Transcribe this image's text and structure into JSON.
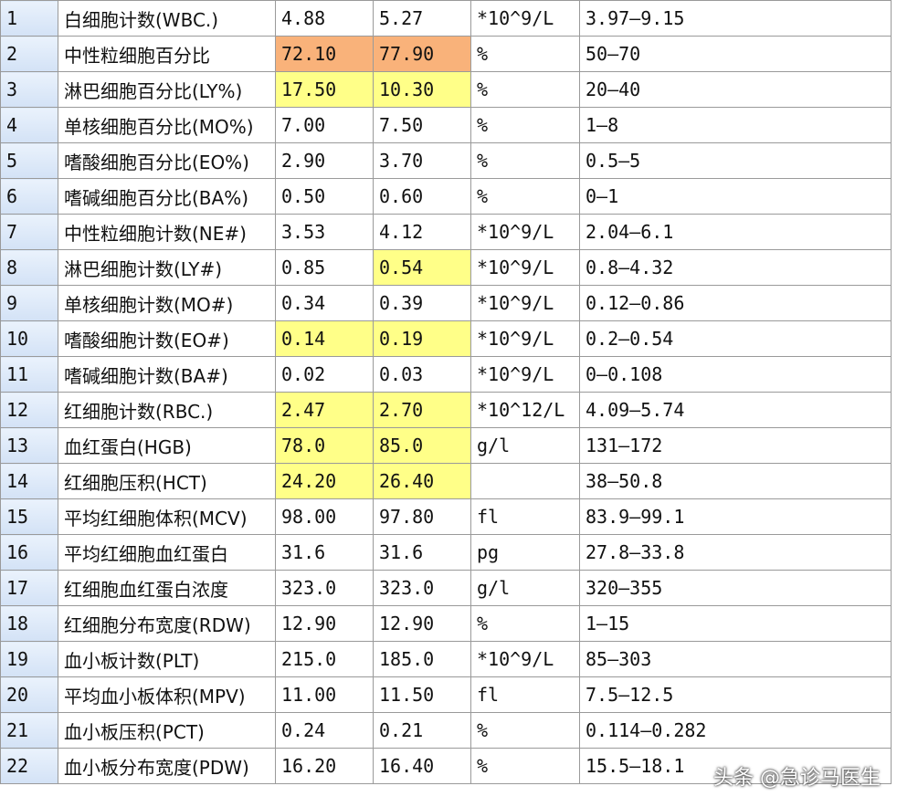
{
  "colors": {
    "yellow_highlight": "#ffff88",
    "orange_highlight": "#f9b27a",
    "index_column": "#dbe7f8"
  },
  "rows": [
    {
      "n": "1",
      "name": "白细胞计数(WBC.)",
      "v1": "4.88",
      "v2": "5.27",
      "unit": "*10^9/L",
      "range": "3.97—9.15",
      "h1": "",
      "h2": ""
    },
    {
      "n": "2",
      "name": "中性粒细胞百分比",
      "v1": "72.10",
      "v2": "77.90",
      "unit": "%",
      "range": "50—70",
      "h1": "orange",
      "h2": "orange"
    },
    {
      "n": "3",
      "name": "淋巴细胞百分比(LY%)",
      "v1": "17.50",
      "v2": "10.30",
      "unit": "%",
      "range": "20—40",
      "h1": "yellow",
      "h2": "yellow"
    },
    {
      "n": "4",
      "name": "单核细胞百分比(MO%)",
      "v1": "7.00",
      "v2": "7.50",
      "unit": "%",
      "range": "1—8",
      "h1": "",
      "h2": ""
    },
    {
      "n": "5",
      "name": "嗜酸细胞百分比(EO%)",
      "v1": "2.90",
      "v2": "3.70",
      "unit": "%",
      "range": "0.5—5",
      "h1": "",
      "h2": ""
    },
    {
      "n": "6",
      "name": "嗜碱细胞百分比(BA%)",
      "v1": "0.50",
      "v2": "0.60",
      "unit": "%",
      "range": "0—1",
      "h1": "",
      "h2": ""
    },
    {
      "n": "7",
      "name": "中性粒细胞计数(NE#)",
      "v1": "3.53",
      "v2": "4.12",
      "unit": "*10^9/L",
      "range": "2.04—6.1",
      "h1": "",
      "h2": ""
    },
    {
      "n": "8",
      "name": "淋巴细胞计数(LY#)",
      "v1": "0.85",
      "v2": "0.54",
      "unit": "*10^9/L",
      "range": "0.8—4.32",
      "h1": "",
      "h2": "yellow"
    },
    {
      "n": "9",
      "name": "单核细胞计数(MO#)",
      "v1": "0.34",
      "v2": "0.39",
      "unit": "*10^9/L",
      "range": "0.12—0.86",
      "h1": "",
      "h2": ""
    },
    {
      "n": "10",
      "name": "嗜酸细胞计数(EO#)",
      "v1": "0.14",
      "v2": "0.19",
      "unit": "*10^9/L",
      "range": "0.2—0.54",
      "h1": "yellow",
      "h2": "yellow"
    },
    {
      "n": "11",
      "name": "嗜碱细胞计数(BA#)",
      "v1": "0.02",
      "v2": "0.03",
      "unit": "*10^9/L",
      "range": "0—0.108",
      "h1": "",
      "h2": ""
    },
    {
      "n": "12",
      "name": "红细胞计数(RBC.)",
      "v1": "2.47",
      "v2": "2.70",
      "unit": "*10^12/L",
      "range": "4.09—5.74",
      "h1": "yellow",
      "h2": "yellow"
    },
    {
      "n": "13",
      "name": "血红蛋白(HGB)",
      "v1": "78.0",
      "v2": "85.0",
      "unit": "g/l",
      "range": "131—172",
      "h1": "yellow",
      "h2": "yellow"
    },
    {
      "n": "14",
      "name": "红细胞压积(HCT)",
      "v1": "24.20",
      "v2": "26.40",
      "unit": "",
      "range": "38—50.8",
      "h1": "yellow",
      "h2": "yellow"
    },
    {
      "n": "15",
      "name": "平均红细胞体积(MCV)",
      "v1": "98.00",
      "v2": "97.80",
      "unit": "fl",
      "range": "83.9—99.1",
      "h1": "",
      "h2": ""
    },
    {
      "n": "16",
      "name": "平均红细胞血红蛋白",
      "v1": "31.6",
      "v2": "31.6",
      "unit": "pg",
      "range": "27.8—33.8",
      "h1": "",
      "h2": ""
    },
    {
      "n": "17",
      "name": "红细胞血红蛋白浓度",
      "v1": "323.0",
      "v2": "323.0",
      "unit": "g/l",
      "range": "320—355",
      "h1": "",
      "h2": ""
    },
    {
      "n": "18",
      "name": "红细胞分布宽度(RDW)",
      "v1": "12.90",
      "v2": "12.90",
      "unit": "%",
      "range": "1—15",
      "h1": "",
      "h2": ""
    },
    {
      "n": "19",
      "name": "血小板计数(PLT)",
      "v1": "215.0",
      "v2": "185.0",
      "unit": "*10^9/L",
      "range": "85—303",
      "h1": "",
      "h2": ""
    },
    {
      "n": "20",
      "name": "平均血小板体积(MPV)",
      "v1": "11.00",
      "v2": "11.50",
      "unit": "fl",
      "range": "7.5—12.5",
      "h1": "",
      "h2": ""
    },
    {
      "n": "21",
      "name": "血小板压积(PCT)",
      "v1": "0.24",
      "v2": "0.21",
      "unit": "%",
      "range": "0.114—0.282",
      "h1": "",
      "h2": ""
    },
    {
      "n": "22",
      "name": "血小板分布宽度(PDW)",
      "v1": "16.20",
      "v2": "16.40",
      "unit": "%",
      "range": "15.5—18.1",
      "h1": "",
      "h2": ""
    }
  ],
  "watermark": "头条 @急诊马医生"
}
